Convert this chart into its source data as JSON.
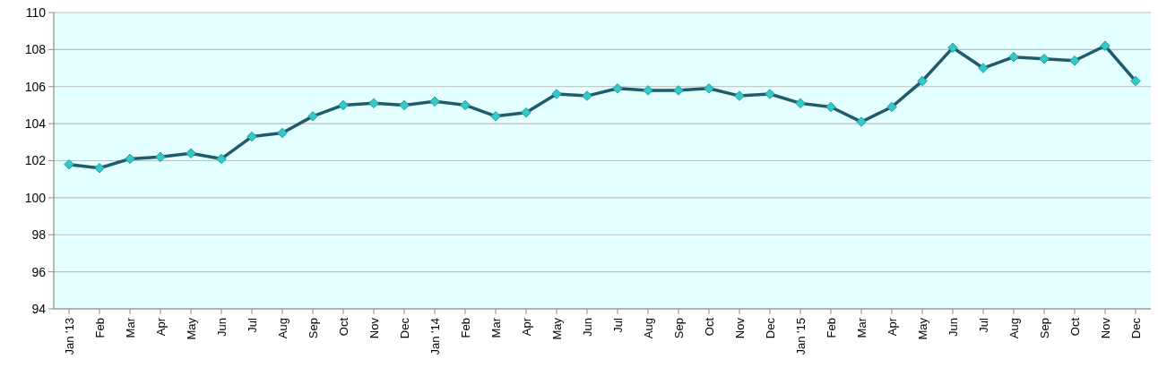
{
  "chart_data": {
    "type": "line",
    "categories": [
      "Jan '13",
      "Feb",
      "Mar",
      "Apr",
      "May",
      "Jun",
      "Jul",
      "Aug",
      "Sep",
      "Oct",
      "Nov",
      "Dec",
      "Jan '14",
      "Feb",
      "Mar",
      "Apr",
      "May",
      "Jun",
      "Jul",
      "Aug",
      "Sep",
      "Oct",
      "Nov",
      "Dec",
      "Jan '15",
      "Feb",
      "Mar",
      "Apr",
      "May",
      "Jun",
      "Jul",
      "Aug",
      "Sep",
      "Oct",
      "Nov",
      "Dec"
    ],
    "series": [
      {
        "color": "#1f5b6b",
        "values": [
          101.8,
          101.6,
          102.1,
          102.2,
          102.4,
          102.1,
          103.3,
          103.5,
          104.4,
          105.0,
          105.1,
          105.0,
          105.2,
          105.0,
          104.4,
          104.6,
          105.6,
          105.5,
          105.9,
          105.8,
          105.8,
          105.9,
          105.5,
          105.6,
          105.1,
          104.9,
          104.1,
          104.9,
          106.3,
          108.1,
          107.0,
          107.6,
          107.5,
          107.4,
          108.2,
          106.3
        ]
      }
    ],
    "ylim": [
      94,
      110
    ],
    "yticks": [
      94,
      96,
      98,
      100,
      102,
      104,
      106,
      108,
      110
    ],
    "grid": "y",
    "marker": "diamond",
    "line_style": "solid"
  }
}
